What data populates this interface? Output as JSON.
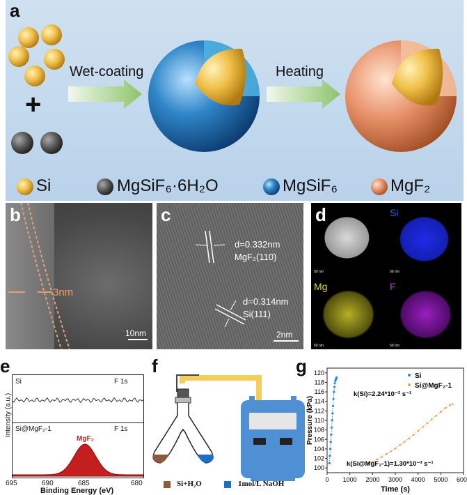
{
  "panels": {
    "a": {
      "label": "a",
      "step1": "Wet-coating",
      "step2": "Heating",
      "plus": "+",
      "legend": [
        "Si",
        "MgSiF₆·6H₂O",
        "MgSiF₆",
        "MgF₂"
      ]
    },
    "b": {
      "label": "b",
      "thickness": "3nm",
      "scale": "10nm"
    },
    "c": {
      "label": "c",
      "ann1_d": "d=0.332nm",
      "ann1_plane": "MgF₂(110)",
      "ann2_d": "d=0.314nm",
      "ann2_plane": "Si(111)",
      "scale": "2nm"
    },
    "d": {
      "label": "d",
      "channels": [
        "Si",
        "Mg",
        "F"
      ],
      "scale": "50 nm",
      "colors": {
        "Si": "#1f2ae8",
        "Mg": "#c8c22a",
        "F": "#a020c8"
      }
    },
    "e": {
      "label": "e",
      "top_sample": "Si",
      "top_peak": "F  1s",
      "bottom_sample": "Si@MgF₂-1",
      "bottom_peak": "F  1s",
      "peak_label": "MgF₂",
      "xlabel": "Binding Energy (eV)",
      "ylabel": "Intensity (a.u.)",
      "xticks": [
        "695",
        "690",
        "685",
        "680"
      ]
    },
    "f": {
      "label": "f",
      "legend1": "Si+H₂O",
      "legend2": "1mol/L NaOH",
      "colors": {
        "left_liquid": "#8a5a3c",
        "right_liquid": "#1f6fc4",
        "device": "#4f8fd4",
        "tube": "#f3cf5a"
      }
    },
    "g": {
      "label": "g"
    }
  },
  "chart_data": {
    "type": "scatter",
    "xlabel": "Time (s)",
    "ylabel": "Pressure (kPa)",
    "xlim": [
      0,
      6000
    ],
    "ylim": [
      99,
      121
    ],
    "xticks": [
      "0",
      "1000",
      "2000",
      "3000",
      "4000",
      "5000",
      "6000"
    ],
    "yticks": [
      "100",
      "102",
      "104",
      "106",
      "108",
      "110",
      "112",
      "114",
      "116",
      "118",
      "120"
    ],
    "legend_position": "top-right",
    "annotations": [
      "k(Si)=2.24*10⁻² s⁻¹",
      "k(Si@MgF₂-1)=1.30*10⁻³ s⁻¹"
    ],
    "series": [
      {
        "name": "Si",
        "color": "#2e86d8",
        "x": [
          100,
          120,
          140,
          160,
          180,
          200,
          220,
          240,
          260,
          280,
          300,
          320,
          340,
          360,
          380,
          400,
          420
        ],
        "y": [
          101,
          102.5,
          104,
          105.5,
          107,
          108.5,
          110,
          111.5,
          113,
          114.5,
          116,
          117,
          117.8,
          118.3,
          118.6,
          118.8,
          119
        ]
      },
      {
        "name": "Si@MgF₂-1",
        "color": "#f0a060",
        "x": [
          1800,
          2000,
          2200,
          2400,
          2600,
          2800,
          3000,
          3200,
          3400,
          3600,
          3800,
          4000,
          4200,
          4400,
          4600,
          4800,
          5000,
          5200,
          5400,
          5500
        ],
        "y": [
          101,
          101.3,
          101.8,
          102.3,
          102.9,
          103.5,
          104.1,
          104.8,
          105.5,
          106.2,
          107,
          107.8,
          108.6,
          109.4,
          110.2,
          111,
          111.8,
          112.6,
          113.2,
          113.4
        ]
      }
    ]
  }
}
